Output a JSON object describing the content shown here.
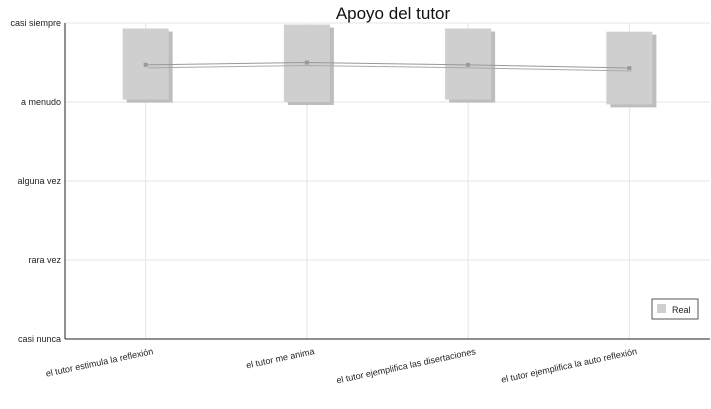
{
  "chart_data": {
    "type": "bar",
    "title": "Apoyo del tutor",
    "y_levels": [
      "casi nunca",
      "rara vez",
      "alguna vez",
      "a menudo",
      "casi siempre"
    ],
    "ylim": [
      1,
      5
    ],
    "grid": true,
    "legend_position": "bottom-right",
    "categories": [
      "el tutor estimula la reflexión",
      "el tutor me anima",
      "el tutor ejemplifica las disertaciones",
      "el tutor ejemplifica la auto reflexión"
    ],
    "series": [
      {
        "name": "Real",
        "color": "#cfcfcf",
        "mean": [
          4.47,
          4.5,
          4.47,
          4.43
        ],
        "upper": [
          4.93,
          4.98,
          4.93,
          4.89
        ],
        "lower": [
          4.03,
          4.0,
          4.03,
          3.97
        ]
      }
    ]
  }
}
